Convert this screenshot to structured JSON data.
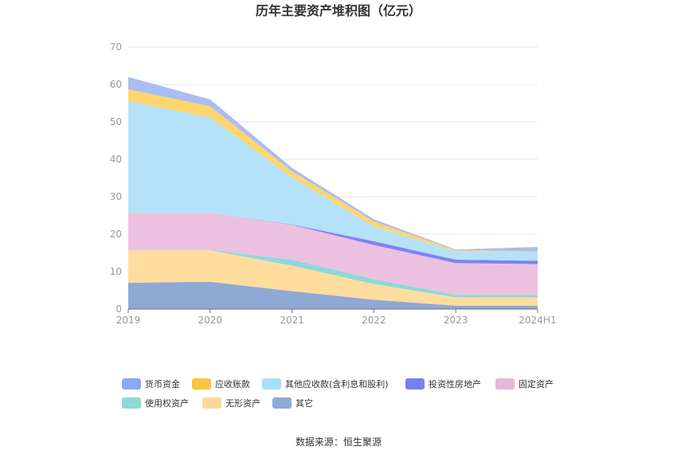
{
  "chart_data": {
    "type": "area",
    "stacked": true,
    "title": "历年主要资产堆积图（亿元）",
    "categories": [
      "2019",
      "2020",
      "2021",
      "2022",
      "2023",
      "2024H1"
    ],
    "ylim": [
      0,
      70
    ],
    "yticks": [
      0,
      10,
      20,
      30,
      40,
      50,
      60,
      70
    ],
    "grid": true,
    "legend_position": "bottom",
    "series": [
      {
        "name": "其它",
        "color": "#8fa9d6",
        "values": [
          7.0,
          7.3,
          4.8,
          2.5,
          0.9,
          0.9
        ]
      },
      {
        "name": "无形资产",
        "color": "#ffdd9e",
        "values": [
          8.7,
          8.4,
          6.8,
          4.2,
          2.2,
          2.2
        ]
      },
      {
        "name": "使用权资产",
        "color": "#8fd8d8",
        "values": [
          0.1,
          0.1,
          1.6,
          1.3,
          0.7,
          0.6
        ]
      },
      {
        "name": "固定资产",
        "color": "#ecc1e0",
        "values": [
          9.8,
          9.8,
          9.3,
          9.1,
          8.5,
          8.3
        ]
      },
      {
        "name": "投资性房地产",
        "color": "#8080f7",
        "values": [
          0.0,
          0.0,
          0.1,
          1.0,
          0.9,
          0.9
        ]
      },
      {
        "name": "其他应收款(含利息和股利)",
        "color": "#b5e2f8",
        "values": [
          30.0,
          25.6,
          12.6,
          4.0,
          2.2,
          2.4
        ]
      },
      {
        "name": "应收账款",
        "color": "#ffd66b",
        "values": [
          3.1,
          3.0,
          1.6,
          1.3,
          0.3,
          0.1
        ]
      },
      {
        "name": "货币资金",
        "color": "#aabdf5",
        "values": [
          3.3,
          1.8,
          0.9,
          0.6,
          0.2,
          1.2
        ]
      }
    ]
  },
  "legend_order": [
    "货币资金",
    "应收账款",
    "其他应收款(含利息和股利)",
    "投资性房地产",
    "固定资产",
    "使用权资产",
    "无形资产",
    "其它"
  ],
  "legend_colors": {
    "货币资金": "#8ca8f3",
    "应收账款": "#fbc53f",
    "其他应收款(含利息和股利)": "#a8e0f8",
    "投资性房地产": "#7b7ef2",
    "固定资产": "#e6b8dc",
    "使用权资产": "#8ed9d6",
    "无形资产": "#fdd89a",
    "其它": "#8fa9d6"
  },
  "source": "数据来源：恒生聚源"
}
